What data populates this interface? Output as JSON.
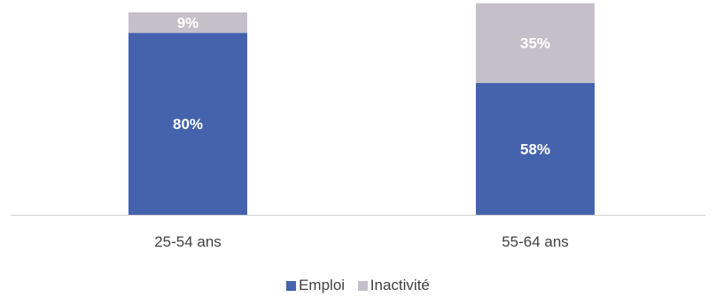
{
  "colors": {
    "emploi": "#4563ac",
    "inactivite": "#c5bfca",
    "axis": "#d0d0d0",
    "label_light": "#ffffff",
    "tick": "#404040"
  },
  "chart_data": {
    "type": "bar",
    "stacked": true,
    "categories": [
      "25-54 ans",
      "55-64 ans"
    ],
    "series": [
      {
        "name": "Emploi",
        "values": [
          80,
          58
        ],
        "labels": [
          "80%",
          "58%"
        ]
      },
      {
        "name": "Inactivité",
        "values": [
          9,
          35
        ],
        "labels": [
          "9%",
          "35%"
        ]
      }
    ],
    "title": "",
    "xlabel": "",
    "ylabel": "",
    "ylim": [
      0,
      89
    ],
    "grid": false,
    "legend_position": "bottom"
  }
}
